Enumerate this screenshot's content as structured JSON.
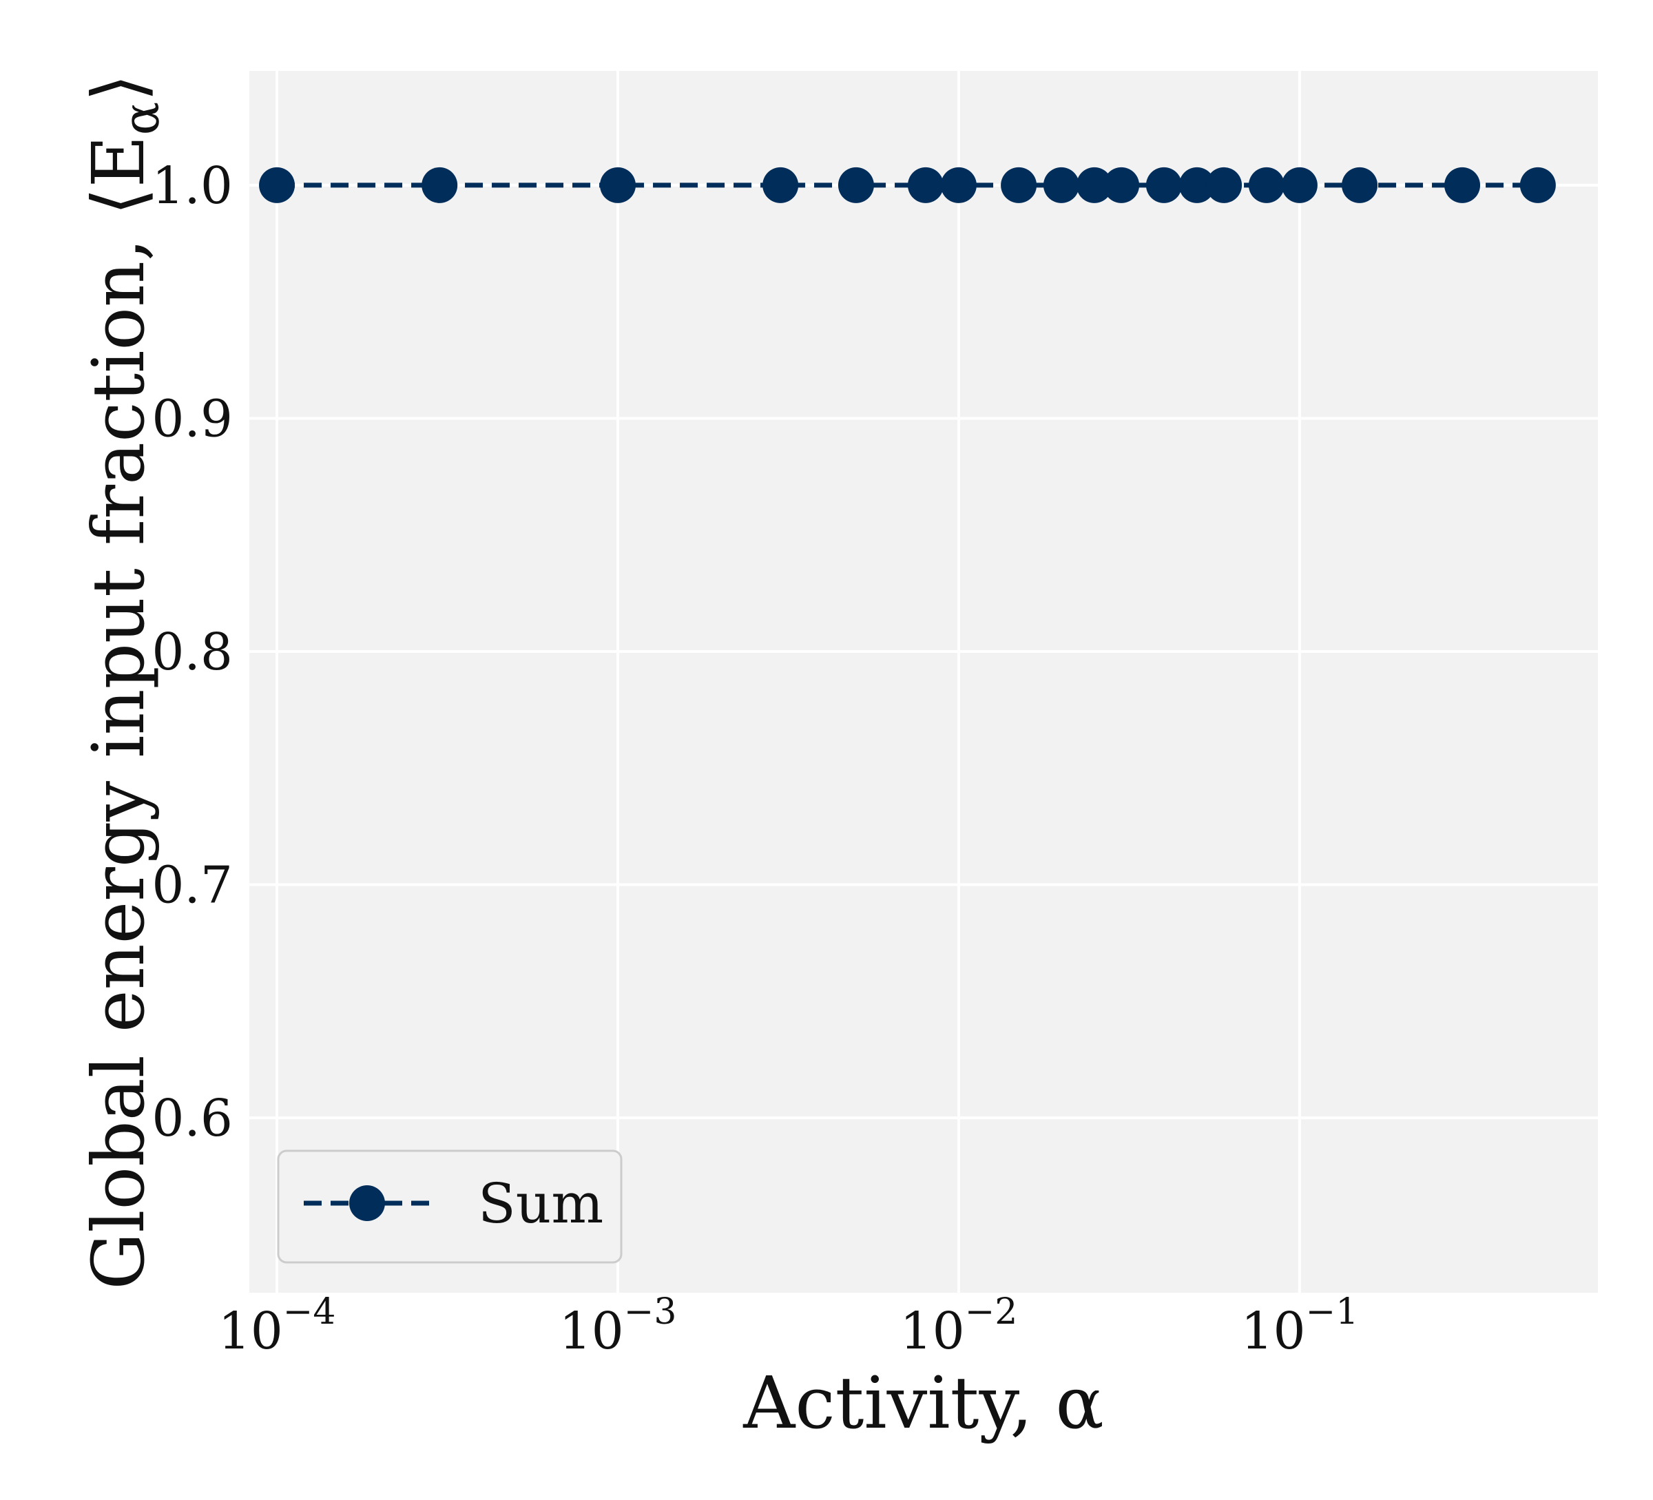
{
  "chart_data": {
    "type": "line",
    "xlabel": "Activity, α",
    "ylabel": "Global energy input fraction, ⟨E",
    "ylabel_sub": "α",
    "ylabel_close": "⟩",
    "x_scale": "log",
    "xlim": [
      8.3e-05,
      0.75
    ],
    "ylim": [
      0.525,
      1.049
    ],
    "grid": true,
    "legend_position": "lower-left",
    "x_ticks": [
      {
        "value": 0.0001,
        "base": "10",
        "exp": "−4"
      },
      {
        "value": 0.001,
        "base": "10",
        "exp": "−3"
      },
      {
        "value": 0.01,
        "base": "10",
        "exp": "−2"
      },
      {
        "value": 0.1,
        "base": "10",
        "exp": "−1"
      }
    ],
    "y_ticks": [
      {
        "value": 0.6,
        "label": "0.6"
      },
      {
        "value": 0.7,
        "label": "0.7"
      },
      {
        "value": 0.8,
        "label": "0.8"
      },
      {
        "value": 0.9,
        "label": "0.9"
      },
      {
        "value": 1.0,
        "label": "1.0"
      }
    ],
    "series": [
      {
        "name": "Sum",
        "color": "#002d5a",
        "line_style": "dashed",
        "marker": "circle",
        "x": [
          0.0001,
          0.0003,
          0.001,
          0.003,
          0.005,
          0.008,
          0.01,
          0.015,
          0.02,
          0.025,
          0.03,
          0.04,
          0.05,
          0.06,
          0.08,
          0.1,
          0.15,
          0.3,
          0.5
        ],
        "y": [
          1.0,
          1.0,
          1.0,
          1.0,
          1.0,
          1.0,
          1.0,
          1.0,
          1.0,
          1.0,
          1.0,
          1.0,
          1.0,
          1.0,
          1.0,
          1.0,
          1.0,
          1.0,
          1.0
        ]
      }
    ],
    "colors": {
      "plot_background": "#f2f2f2",
      "grid": "#ffffff",
      "legend_border": "#cccccc"
    }
  }
}
